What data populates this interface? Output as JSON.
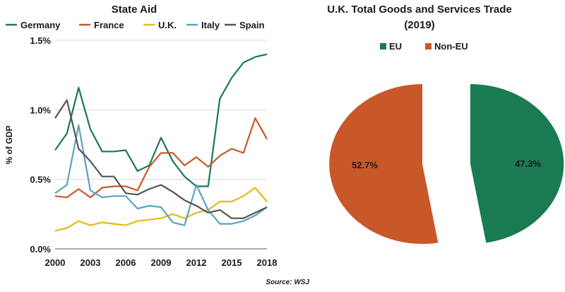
{
  "chart_data": [
    {
      "type": "line",
      "title": "State Aid",
      "ylabel": "% of GDP",
      "xlabel": "",
      "ylim": [
        0,
        1.5
      ],
      "xlim": [
        2000,
        2018
      ],
      "grid": "horizontal",
      "legend_position": "top",
      "x": [
        2000,
        2001,
        2002,
        2003,
        2004,
        2005,
        2006,
        2007,
        2008,
        2009,
        2010,
        2011,
        2012,
        2013,
        2014,
        2015,
        2016,
        2017,
        2018
      ],
      "x_tick_labels": [
        "2000",
        "2003",
        "2006",
        "2009",
        "2012",
        "2015",
        "2018"
      ],
      "x_ticks": [
        2000,
        2003,
        2006,
        2009,
        2012,
        2015,
        2018
      ],
      "y_tick_labels": [
        "0.0%",
        "0.5%",
        "1.0%",
        "1.5%"
      ],
      "y_ticks": [
        0,
        0.5,
        1.0,
        1.5
      ],
      "series": [
        {
          "name": "Germany",
          "color": "#1a7a52",
          "values": [
            0.71,
            0.83,
            1.16,
            0.86,
            0.7,
            0.7,
            0.71,
            0.56,
            0.6,
            0.8,
            0.63,
            0.52,
            0.45,
            0.45,
            1.08,
            1.23,
            1.34,
            1.38,
            1.4
          ]
        },
        {
          "name": "France",
          "color": "#c8582a",
          "values": [
            0.38,
            0.37,
            0.43,
            0.37,
            0.44,
            0.45,
            0.45,
            0.42,
            0.59,
            0.69,
            0.69,
            0.6,
            0.66,
            0.59,
            0.67,
            0.72,
            0.69,
            0.94,
            0.79
          ]
        },
        {
          "name": "U.K.",
          "color": "#e8b81c",
          "values": [
            0.13,
            0.15,
            0.2,
            0.17,
            0.19,
            0.18,
            0.17,
            0.2,
            0.21,
            0.22,
            0.25,
            0.22,
            0.26,
            0.28,
            0.34,
            0.34,
            0.38,
            0.44,
            0.34
          ]
        },
        {
          "name": "Italy",
          "color": "#5aa3c0",
          "values": [
            0.4,
            0.46,
            0.89,
            0.42,
            0.37,
            0.38,
            0.38,
            0.29,
            0.31,
            0.3,
            0.19,
            0.17,
            0.46,
            0.28,
            0.18,
            0.18,
            0.2,
            0.24,
            0.3
          ]
        },
        {
          "name": "Spain",
          "color": "#555555",
          "values": [
            0.94,
            1.07,
            0.72,
            0.63,
            0.52,
            0.52,
            0.4,
            0.39,
            0.43,
            0.46,
            0.41,
            0.35,
            0.31,
            0.26,
            0.28,
            0.22,
            0.22,
            0.26,
            0.3
          ]
        }
      ]
    },
    {
      "type": "pie",
      "title": "U.K. Total Goods and Services Trade",
      "subtitle": "(2019)",
      "legend_position": "top",
      "series": [
        {
          "name": "EU",
          "value": 47.3,
          "label": "47.3%",
          "color": "#1a7a52"
        },
        {
          "name": "Non-EU",
          "value": 52.7,
          "label": "52.7%",
          "color": "#c8582a"
        }
      ]
    }
  ],
  "source": "Source: WSJ"
}
